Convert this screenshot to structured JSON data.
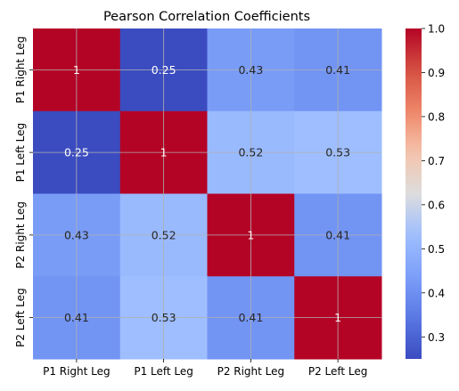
{
  "chart_data": {
    "type": "heatmap",
    "title": "Pearson Correlation Coefficients",
    "x_labels": [
      "P1 Right Leg",
      "P1 Left Leg",
      "P2 Right Leg",
      "P2 Left Leg"
    ],
    "y_labels": [
      "P1 Right Leg",
      "P1 Left Leg",
      "P2 Right Leg",
      "P2 Left Leg"
    ],
    "values": [
      [
        1,
        0.25,
        0.43,
        0.41
      ],
      [
        0.25,
        1,
        0.52,
        0.53
      ],
      [
        0.43,
        0.52,
        1,
        0.41
      ],
      [
        0.41,
        0.53,
        0.41,
        1
      ]
    ],
    "cell_labels": [
      [
        "1",
        "0.25",
        "0.43",
        "0.41"
      ],
      [
        "0.25",
        "1",
        "0.52",
        "0.53"
      ],
      [
        "0.43",
        "0.52",
        "1",
        "0.41"
      ],
      [
        "0.41",
        "0.53",
        "0.41",
        "1"
      ]
    ],
    "colorbar": {
      "min": 0.25,
      "max": 1.0,
      "ticks": [
        0.3,
        0.4,
        0.5,
        0.6,
        0.7,
        0.8,
        0.9,
        1.0
      ],
      "tick_labels": [
        "0.3",
        "0.4",
        "0.5",
        "0.6",
        "0.7",
        "0.8",
        "0.9",
        "1.0"
      ]
    },
    "colormap": "coolwarm",
    "grid": true,
    "xlabel": "",
    "ylabel": ""
  }
}
